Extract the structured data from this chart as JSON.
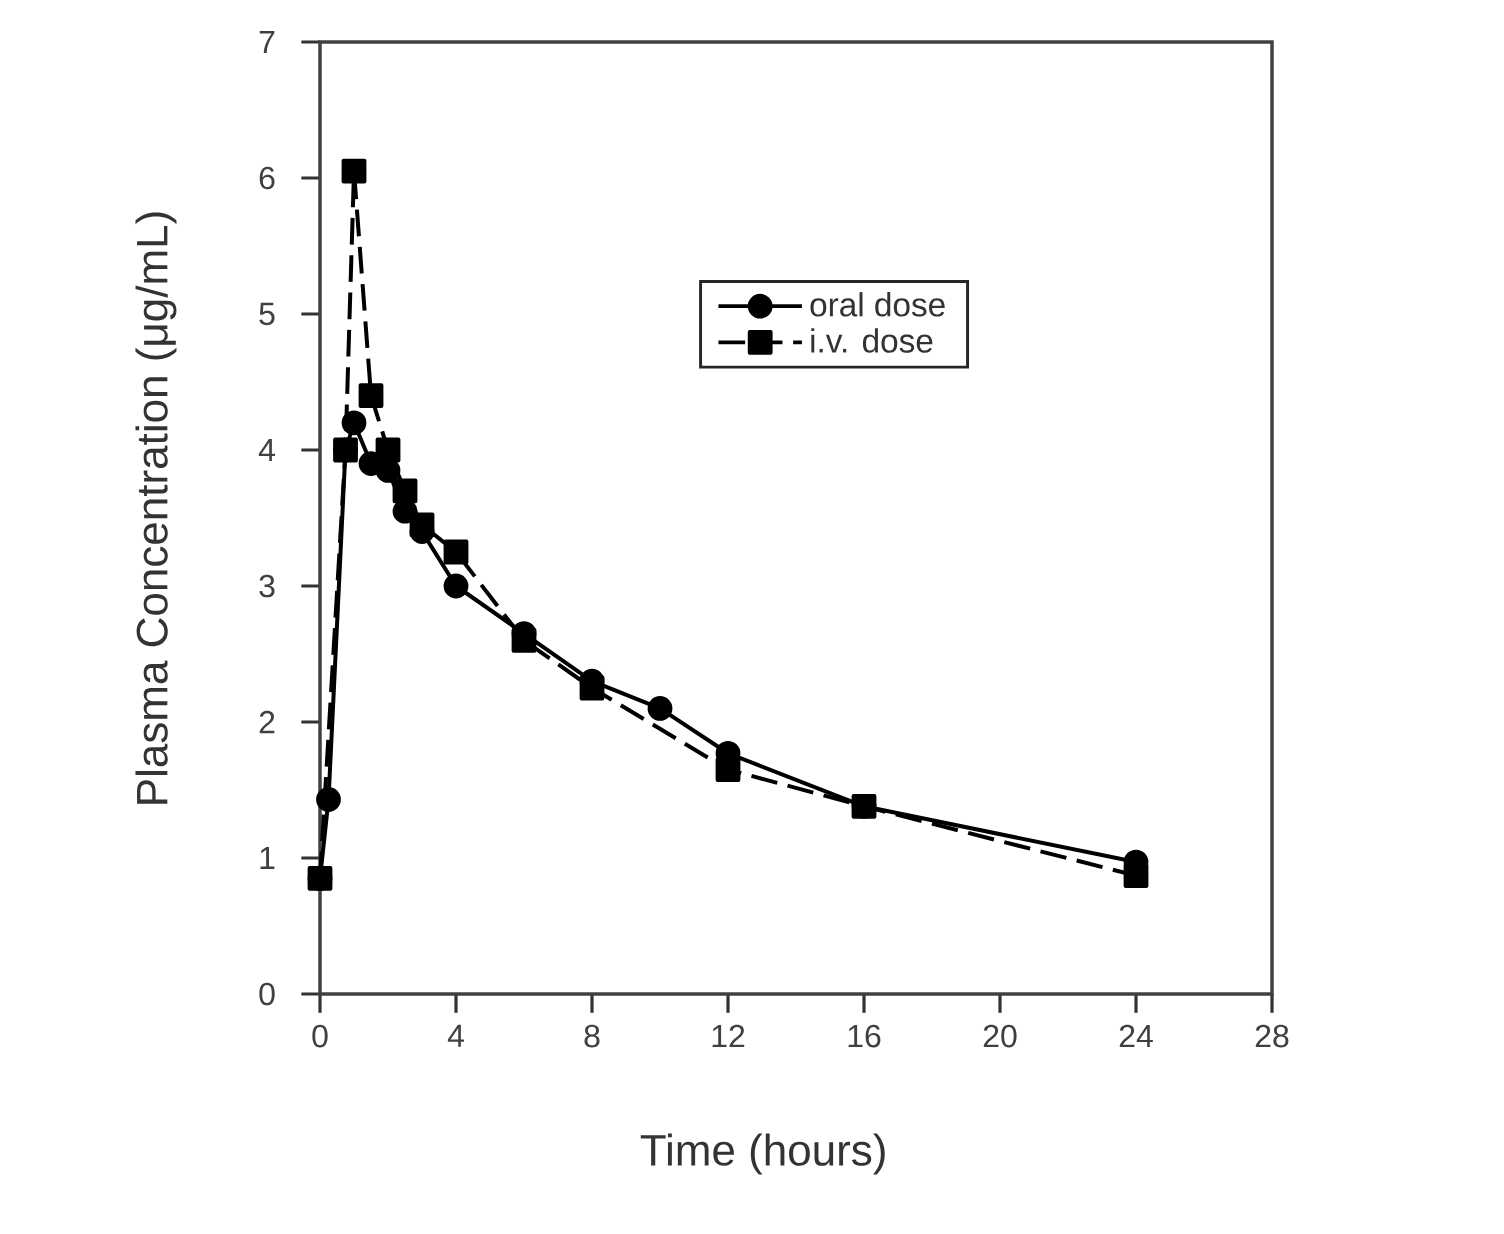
{
  "chart_data": {
    "type": "line",
    "xlabel": "Time (hours)",
    "ylabel": "Plasma Concentration (μg/mL)",
    "xlim": [
      0,
      28
    ],
    "xticks": [
      0,
      4,
      8,
      12,
      16,
      20,
      24,
      28
    ],
    "ylim": [
      0,
      7
    ],
    "yticks": [
      0,
      1,
      2,
      3,
      4,
      5,
      6,
      7
    ],
    "legend": "top",
    "series": [
      {
        "name": "oral dose",
        "color": "#000000",
        "marker": "circle",
        "line_style": "solid",
        "x": [
          0,
          0.25,
          0.75,
          1,
          1.5,
          2,
          2.5,
          3,
          4,
          6,
          8,
          10,
          12,
          16,
          24
        ],
        "values": [
          0.85,
          1.43,
          4.0,
          4.2,
          3.9,
          3.85,
          3.55,
          3.4,
          3.0,
          2.65,
          2.3,
          2.1,
          1.77,
          1.38,
          0.97
        ]
      },
      {
        "name": "i.v. dose",
        "color": "#000000",
        "marker": "square",
        "line_style": "dashed",
        "x": [
          0,
          0.75,
          1,
          1.5,
          2,
          2.5,
          3,
          4,
          6,
          8,
          12,
          16,
          24
        ],
        "values": [
          0.85,
          4.0,
          6.05,
          4.4,
          4.0,
          3.7,
          3.45,
          3.25,
          2.6,
          2.25,
          1.65,
          1.38,
          0.87
        ]
      }
    ]
  }
}
